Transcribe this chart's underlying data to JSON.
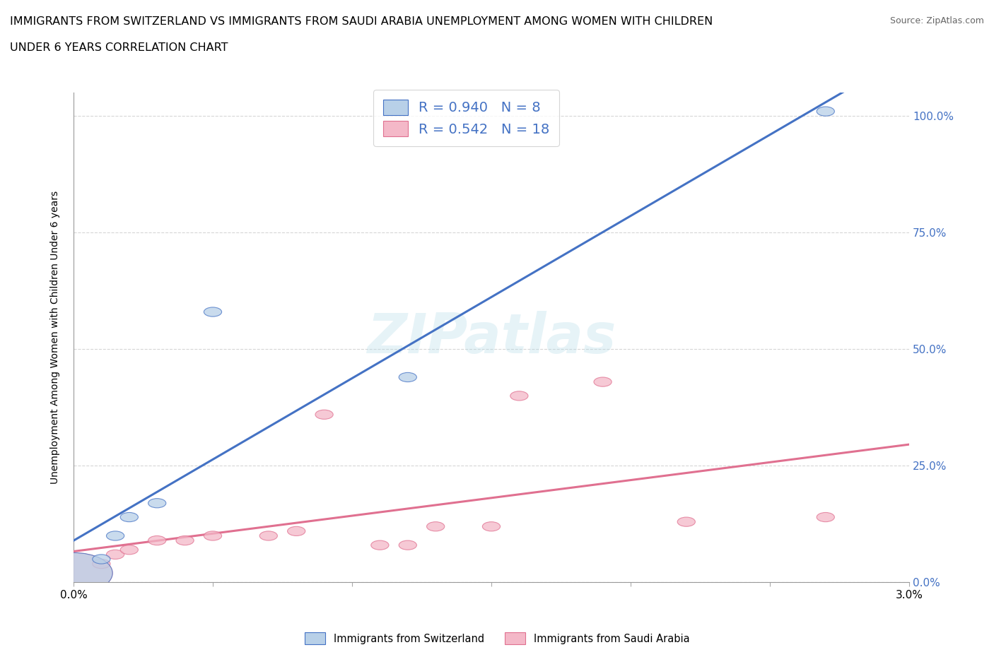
{
  "title_line1": "IMMIGRANTS FROM SWITZERLAND VS IMMIGRANTS FROM SAUDI ARABIA UNEMPLOYMENT AMONG WOMEN WITH CHILDREN",
  "title_line2": "UNDER 6 YEARS CORRELATION CHART",
  "source": "Source: ZipAtlas.com",
  "ylabel": "Unemployment Among Women with Children Under 6 years",
  "xmin": 0.0,
  "xmax": 0.03,
  "ymin": 0.0,
  "ymax": 1.05,
  "yticks": [
    0.0,
    0.25,
    0.5,
    0.75,
    1.0
  ],
  "ytick_labels": [
    "0.0%",
    "25.0%",
    "50.0%",
    "75.0%",
    "100.0%"
  ],
  "xticks": [
    0.0,
    0.005,
    0.01,
    0.015,
    0.02,
    0.025,
    0.03
  ],
  "xtick_labels": [
    "0.0%",
    "",
    "",
    "",
    "",
    "",
    "3.0%"
  ],
  "switzerland_fill_color": "#b8d0e8",
  "switzerland_edge_color": "#4472c4",
  "saudi_fill_color": "#f4b8c8",
  "saudi_edge_color": "#e07090",
  "line_switzerland_color": "#4472c4",
  "line_saudi_color": "#e07090",
  "ytick_color": "#4472c4",
  "R_switzerland": 0.94,
  "N_switzerland": 8,
  "R_saudi": 0.542,
  "N_saudi": 18,
  "watermark": "ZIPatlas",
  "switzerland_points_x": [
    0.0,
    0.001,
    0.0015,
    0.002,
    0.003,
    0.005,
    0.012,
    0.027
  ],
  "switzerland_points_y": [
    0.02,
    0.05,
    0.1,
    0.14,
    0.17,
    0.58,
    0.44,
    1.01
  ],
  "saudi_points_x": [
    0.0,
    0.001,
    0.0015,
    0.002,
    0.003,
    0.004,
    0.005,
    0.007,
    0.008,
    0.009,
    0.011,
    0.012,
    0.013,
    0.015,
    0.016,
    0.019,
    0.022,
    0.027
  ],
  "saudi_points_y": [
    0.02,
    0.04,
    0.06,
    0.07,
    0.09,
    0.09,
    0.1,
    0.1,
    0.11,
    0.36,
    0.08,
    0.08,
    0.12,
    0.12,
    0.4,
    0.43,
    0.13,
    0.14
  ],
  "legend_label_switzerland": "Immigrants from Switzerland",
  "legend_label_saudi": "Immigrants from Saudi Arabia"
}
